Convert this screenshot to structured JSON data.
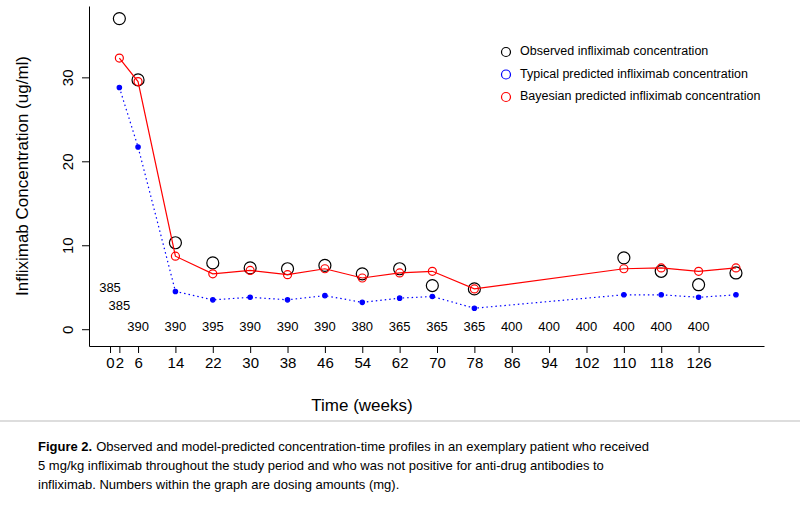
{
  "chart_data": {
    "type": "line",
    "x_label": "Time (weeks)",
    "y_label": "Infliximab Concentration (ug/ml)",
    "x": [
      2,
      6,
      14,
      22,
      30,
      38,
      46,
      54,
      62,
      69,
      78,
      110,
      118,
      126,
      134
    ],
    "series": [
      {
        "name": "Observed infliximab concentration",
        "color": "#000000",
        "marker": "circle",
        "line_style": "none",
        "values": [
          37.0,
          29.7,
          10.3,
          7.9,
          7.3,
          7.2,
          7.6,
          6.6,
          7.2,
          5.2,
          4.8,
          8.5,
          6.9,
          5.3,
          6.7
        ]
      },
      {
        "name": "Typical predicted infliximab concentration",
        "color": "#0000ff",
        "marker": "dot",
        "line_style": "dotted",
        "values": [
          28.8,
          21.7,
          4.5,
          3.5,
          3.8,
          3.5,
          4.0,
          3.2,
          3.7,
          3.9,
          2.5,
          4.1,
          4.1,
          3.8,
          4.1
        ]
      },
      {
        "name": "Bayesian predicted infliximab concentration",
        "color": "#ff0000",
        "marker": "small_circle",
        "line_style": "solid",
        "values": [
          32.3,
          29.5,
          8.7,
          6.6,
          7.0,
          6.5,
          7.2,
          6.1,
          6.7,
          6.9,
          4.8,
          7.2,
          7.3,
          6.9,
          7.3
        ]
      }
    ],
    "xlim": [
      -4.5,
      140
    ],
    "ylim": [
      -2,
      38.5
    ],
    "xticks": [
      0,
      2,
      6,
      14,
      22,
      30,
      38,
      46,
      54,
      62,
      70,
      78,
      86,
      94,
      102,
      110,
      118,
      126
    ],
    "yticks": [
      0,
      10,
      20,
      30
    ],
    "legend": "top-right",
    "grid": false,
    "annotations": [
      {
        "x": 0,
        "y": 4.9,
        "text": "385"
      },
      {
        "x": 2,
        "y": 2.7,
        "text": "385"
      },
      {
        "x": 6,
        "y": 0.2,
        "text": "390"
      },
      {
        "x": 14,
        "y": 0.2,
        "text": "390"
      },
      {
        "x": 22,
        "y": 0.2,
        "text": "395"
      },
      {
        "x": 30,
        "y": 0.2,
        "text": "390"
      },
      {
        "x": 38,
        "y": 0.2,
        "text": "390"
      },
      {
        "x": 46,
        "y": 0.2,
        "text": "390"
      },
      {
        "x": 54,
        "y": 0.2,
        "text": "380"
      },
      {
        "x": 62,
        "y": 0.2,
        "text": "365"
      },
      {
        "x": 70,
        "y": 0.2,
        "text": "365"
      },
      {
        "x": 78,
        "y": 0.2,
        "text": "365"
      },
      {
        "x": 86,
        "y": 0.2,
        "text": "400"
      },
      {
        "x": 94,
        "y": 0.2,
        "text": "400"
      },
      {
        "x": 102,
        "y": 0.2,
        "text": "400"
      },
      {
        "x": 110,
        "y": 0.2,
        "text": "400"
      },
      {
        "x": 118,
        "y": 0.2,
        "text": "400"
      },
      {
        "x": 126,
        "y": 0.2,
        "text": "400"
      }
    ],
    "caption": {
      "label": "Figure 2.",
      "lines": [
        "Observed and model-predicted concentration-time profiles in an exemplary patient who received",
        "5 mg/kg infliximab throughout the study period and who was not positive for anti-drug antibodies to",
        "infliximab. Numbers within the graph are dosing amounts (mg)."
      ]
    }
  }
}
